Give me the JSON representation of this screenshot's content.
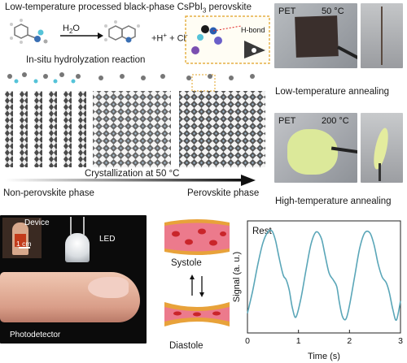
{
  "figure": {
    "title_prefix": "Low-temperature  processed black-phase CsPbI",
    "title_sub": "3",
    "title_suffix": " perovskite",
    "reaction": {
      "water_prefix": "H",
      "water_sub": "2",
      "water_suffix": "O",
      "products_h": "+H",
      "products_h_sup": "+",
      "products_cl": " + Cl",
      "products_cl_sup": "-",
      "label": "In-situ hydrolyzation reaction",
      "inset_label": "H-bond"
    },
    "crystallization_label": "Crystallization at  50 °C",
    "non_perovskite_label": "Non-perovskite phase",
    "perovskite_label": "Perovskite phase",
    "photos": {
      "low_substrate": "PET",
      "low_temp": "50 °C",
      "low_caption": "Low-temperature annealing",
      "high_substrate": "PET",
      "high_temp": "200 °C",
      "high_caption": "High-temperature annealing"
    },
    "device_photo": {
      "device_label": "Device",
      "scale_label": "1 cm",
      "led_label": "LED",
      "photodetector_label": "Photodetector"
    },
    "vessel": {
      "systole_label": "Systole",
      "diastole_label": "Diastole"
    },
    "colors": {
      "vessel_wall": "#e8a23a",
      "vessel_inner": "#ec7a8c",
      "blood_cell": "#c9252a",
      "signal_line": "#5aa6b8",
      "octahedra": "#444444"
    }
  },
  "chart_data": {
    "type": "line",
    "title": "Rest",
    "xlabel": "Time (s)",
    "ylabel": "Signal (a. u.)",
    "xlim": [
      0,
      3
    ],
    "xticks": [
      0,
      1,
      2,
      3
    ],
    "x_tick_labels": [
      "0",
      "1",
      "2",
      "3"
    ],
    "grid": false,
    "series": [
      {
        "x": [
          0.0,
          0.1,
          0.2,
          0.3,
          0.4,
          0.48,
          0.55,
          0.62,
          0.7,
          0.76,
          0.82,
          0.88,
          0.95,
          1.05,
          1.15,
          1.25,
          1.35,
          1.45,
          1.52,
          1.6,
          1.68,
          1.75,
          1.8,
          1.86,
          1.93,
          2.0,
          2.1,
          2.2,
          2.3,
          2.4,
          2.48,
          2.56,
          2.64,
          2.72,
          2.78,
          2.85,
          2.92,
          3.0
        ],
        "y": [
          0.12,
          0.35,
          0.62,
          0.85,
          0.97,
          0.98,
          0.88,
          0.7,
          0.52,
          0.47,
          0.36,
          0.18,
          0.08,
          0.28,
          0.58,
          0.85,
          0.97,
          0.9,
          0.73,
          0.54,
          0.47,
          0.4,
          0.24,
          0.09,
          0.06,
          0.2,
          0.5,
          0.8,
          0.96,
          0.96,
          0.84,
          0.64,
          0.5,
          0.44,
          0.34,
          0.16,
          0.05,
          0.25
        ]
      }
    ]
  }
}
